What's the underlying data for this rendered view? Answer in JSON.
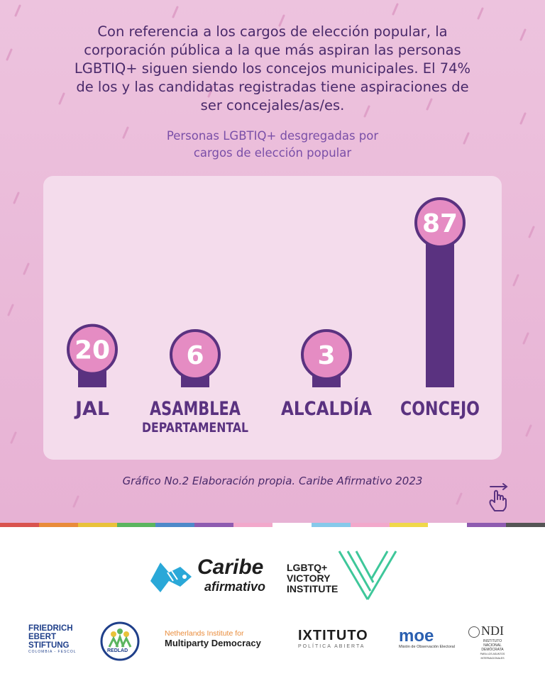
{
  "intro_text": "Con referencia a los cargos de elección popular, la corporación pública a la que más aspiran las personas LGBTIQ+ siguen siendo los concejos municipales. El 74% de los y las candidatas registradas tiene aspiraciones de ser concejales/as/es.",
  "chart_title_line1": "Personas LGBTIQ+ desgregadas por",
  "chart_title_line2": "cargos de elección popular",
  "caption": "Gráfico No.2 Elaboración propia. Caribe Afirmativo 2023",
  "colors": {
    "background": "#e9b8d8",
    "panel": "#f4dcec",
    "bar": "#5a3280",
    "bubble": "#e58cc3",
    "bubble_border": "#5a3280",
    "label": "#5a3280",
    "text": "#4a2a6b"
  },
  "chart_data": {
    "type": "bar",
    "categories": [
      "JAL",
      "ASAMBLEA DEPARTAMENTAL",
      "ALCALDÍA",
      "CONCEJO"
    ],
    "category_lines": [
      [
        "JAL"
      ],
      [
        "ASAMBLEA",
        "DEPARTAMENTAL"
      ],
      [
        "ALCALDÍA"
      ],
      [
        "CONCEJO"
      ]
    ],
    "values": [
      20,
      6,
      3,
      87
    ],
    "value_labels": [
      "20",
      "6",
      "3",
      "87"
    ]
  },
  "logos": {
    "caribe_line1": "Caribe",
    "caribe_line2": "afirmativo",
    "lgbtq_line1": "LGBTQ+",
    "lgbtq_line2": "VICTORY",
    "lgbtq_line3": "INSTITUTE",
    "fes_line1": "FRIEDRICH",
    "fes_line2": "EBERT",
    "fes_line3": "STIFTUNG",
    "fes_sub": "COLOMBIA - FESCOL",
    "redlad": "REDLAD",
    "nimd_line1": "Netherlands Institute for",
    "nimd_line2": "Multiparty Democracy",
    "ixtituto": "IXTITUTO",
    "ixtituto_sub": "POLÍTICA ABIERTA",
    "moe": "moe",
    "moe_sub": "Misión de Observación Electoral",
    "ndi": "NDI",
    "ndi_sub1": "INSTITUTO",
    "ndi_sub2": "NACIONAL",
    "ndi_sub3": "DEMÓCRATA",
    "ndi_sub4": "PARA LOS ASUNTOS INTERNACIONALES"
  }
}
